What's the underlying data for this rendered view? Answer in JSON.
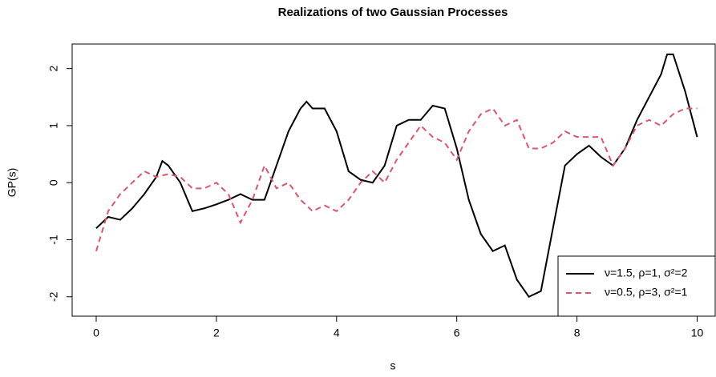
{
  "chart_data": {
    "type": "line",
    "title": "Realizations of two Gaussian Processes",
    "x_label": "s",
    "y_label": "GP(s)",
    "xlim": [
      -0.4,
      10.3
    ],
    "ylim": [
      -2.34,
      2.43
    ],
    "xticks": [
      0,
      2,
      4,
      6,
      8,
      10
    ],
    "yticks": [
      -2,
      -1,
      0,
      1,
      2
    ],
    "legend_position": "bottomright",
    "series": [
      {
        "name": "ν=1.5, ρ=1, σ²=2",
        "color": "#000000",
        "line_style": "solid",
        "x": [
          0,
          0.2,
          0.4,
          0.6,
          0.8,
          1.0,
          1.1,
          1.2,
          1.4,
          1.6,
          1.8,
          2.0,
          2.2,
          2.4,
          2.6,
          2.8,
          3.0,
          3.2,
          3.4,
          3.5,
          3.6,
          3.8,
          4.0,
          4.2,
          4.4,
          4.6,
          4.8,
          5.0,
          5.2,
          5.4,
          5.6,
          5.8,
          6.0,
          6.2,
          6.4,
          6.6,
          6.8,
          7.0,
          7.2,
          7.4,
          7.6,
          7.8,
          8.0,
          8.2,
          8.4,
          8.6,
          8.8,
          9.0,
          9.2,
          9.4,
          9.5,
          9.6,
          9.8,
          10
        ],
        "values": [
          -0.8,
          -0.6,
          -0.65,
          -0.45,
          -0.2,
          0.1,
          0.38,
          0.3,
          0,
          -0.5,
          -0.45,
          -0.38,
          -0.3,
          -0.2,
          -0.3,
          -0.3,
          0.3,
          0.9,
          1.3,
          1.42,
          1.3,
          1.3,
          0.9,
          0.2,
          0.05,
          0,
          0.3,
          1.0,
          1.1,
          1.1,
          1.35,
          1.3,
          0.6,
          -0.3,
          -0.9,
          -1.2,
          -1.1,
          -1.7,
          -2.0,
          -1.9,
          -0.8,
          0.3,
          0.5,
          0.65,
          0.45,
          0.3,
          0.6,
          1.1,
          1.5,
          1.9,
          2.25,
          2.25,
          1.6,
          0.8
        ]
      },
      {
        "name": "ν=0.5, ρ=3, σ²=1",
        "color": "#DF536B",
        "line_style": "dashed",
        "x": [
          0,
          0.2,
          0.4,
          0.6,
          0.8,
          1.0,
          1.2,
          1.4,
          1.6,
          1.8,
          2.0,
          2.2,
          2.4,
          2.6,
          2.8,
          3.0,
          3.2,
          3.4,
          3.6,
          3.8,
          4.0,
          4.2,
          4.4,
          4.6,
          4.8,
          5.0,
          5.2,
          5.4,
          5.6,
          5.8,
          6.0,
          6.2,
          6.4,
          6.6,
          6.8,
          7.0,
          7.2,
          7.4,
          7.6,
          7.8,
          8.0,
          8.2,
          8.4,
          8.6,
          8.8,
          9.0,
          9.2,
          9.4,
          9.6,
          9.8,
          10
        ],
        "values": [
          -1.2,
          -0.5,
          -0.2,
          0,
          0.2,
          0.1,
          0.15,
          0.1,
          -0.1,
          -0.1,
          0,
          -0.2,
          -0.7,
          -0.3,
          0.3,
          -0.1,
          0,
          -0.3,
          -0.5,
          -0.4,
          -0.5,
          -0.3,
          0,
          0.2,
          0,
          0.4,
          0.7,
          1.0,
          0.8,
          0.7,
          0.4,
          0.9,
          1.2,
          1.3,
          1.0,
          1.1,
          0.6,
          0.6,
          0.7,
          0.9,
          0.8,
          0.8,
          0.8,
          0.3,
          0.6,
          1.0,
          1.1,
          1.0,
          1.2,
          1.3,
          1.3
        ]
      }
    ]
  }
}
